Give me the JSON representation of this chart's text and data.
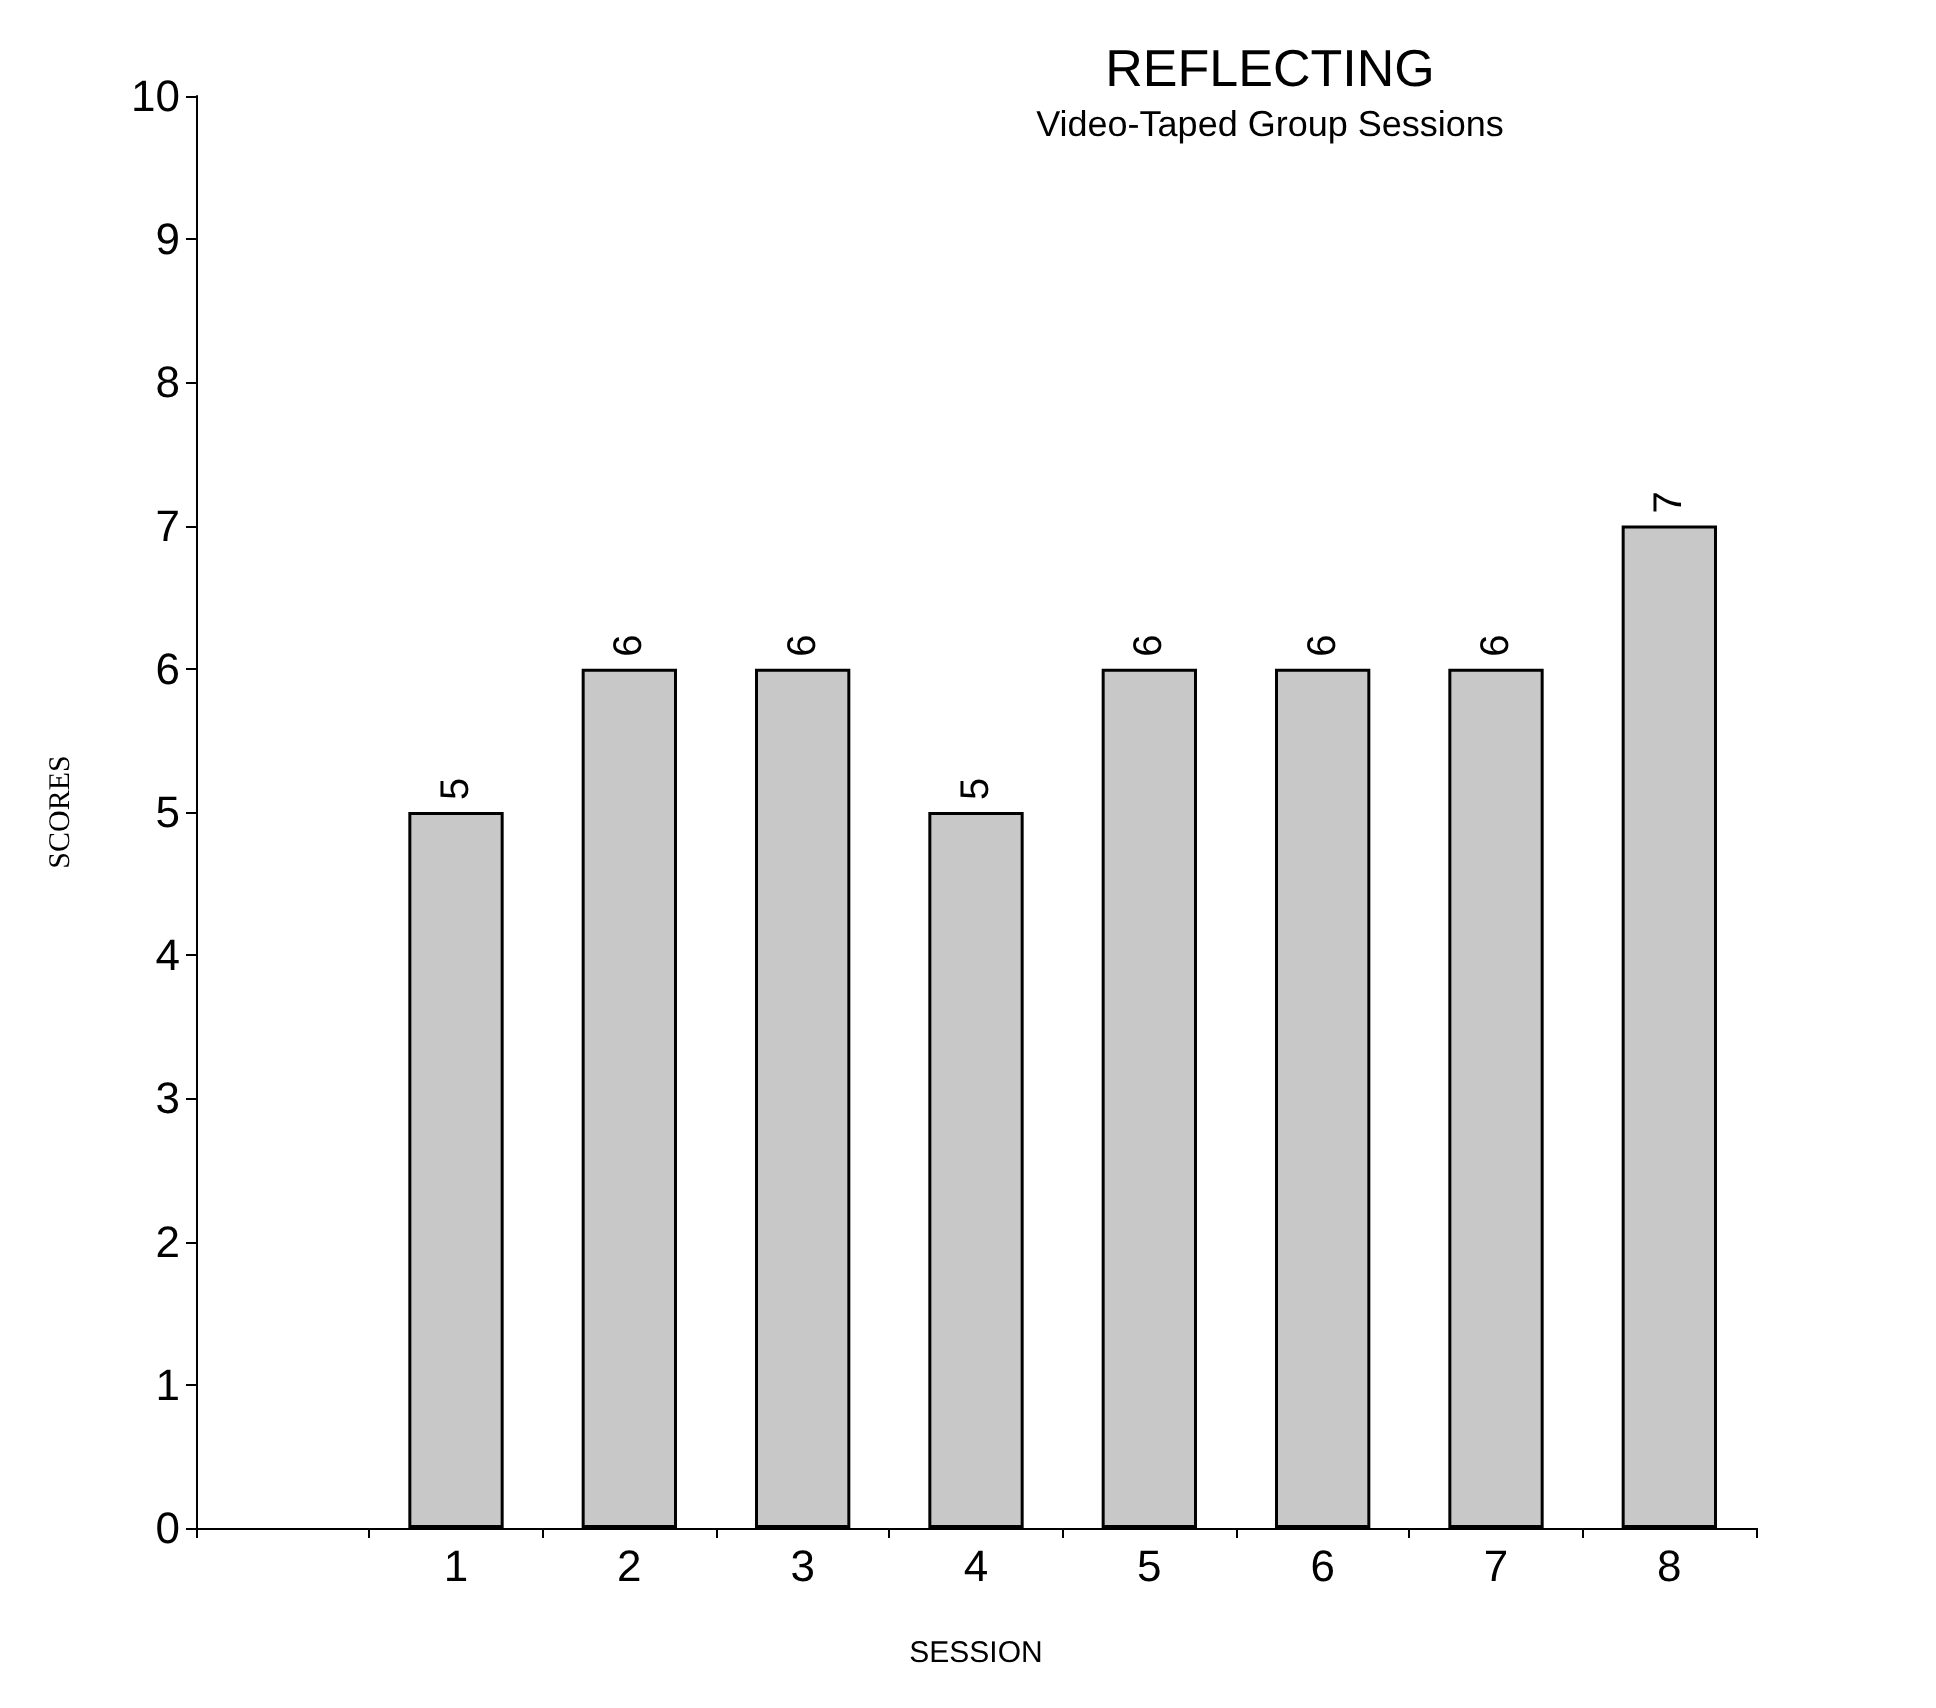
{
  "chart_data": {
    "type": "bar",
    "title": "REFLECTING",
    "subtitle": "Video-Taped Group Sessions",
    "xlabel": "SESSION",
    "ylabel": "SCORES",
    "categories": [
      null,
      "1",
      "2",
      "3",
      "4",
      "5",
      "6",
      "7",
      "8"
    ],
    "values": [
      null,
      5,
      6,
      6,
      5,
      6,
      6,
      6,
      7
    ],
    "color": "#c8c8c8",
    "ylim": [
      0,
      10
    ],
    "yticks": [
      0,
      1,
      2,
      3,
      4,
      5,
      6,
      7,
      8,
      9,
      10
    ],
    "grid": false,
    "data_labels": true
  }
}
